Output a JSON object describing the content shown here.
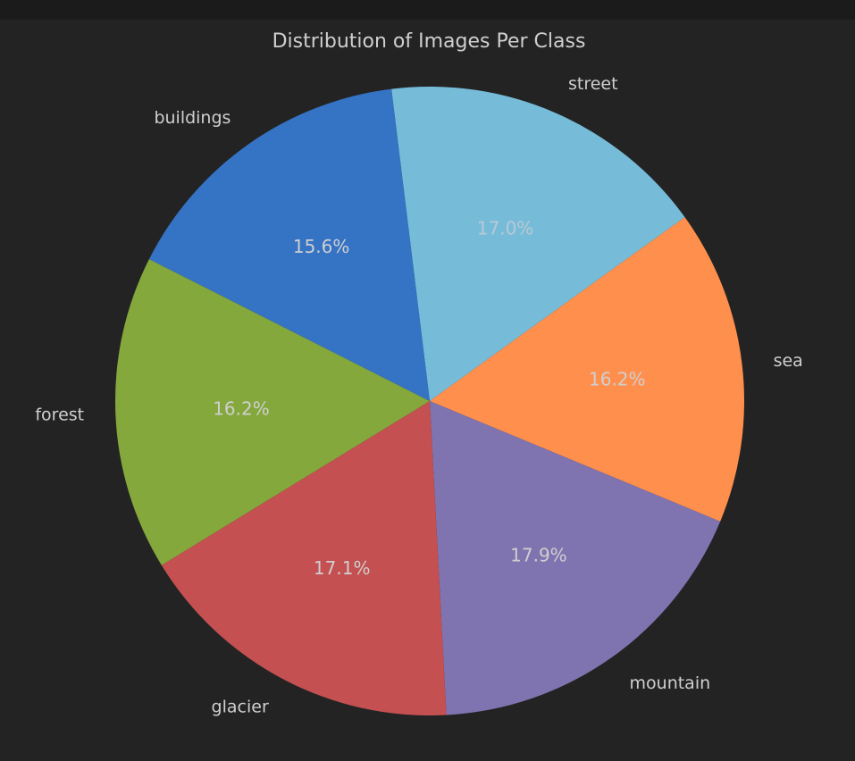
{
  "chart_data": {
    "type": "pie",
    "title": "Distribution of Images Per Class",
    "categories": [
      "street",
      "sea",
      "mountain",
      "glacier",
      "forest",
      "buildings"
    ],
    "values": [
      17.0,
      16.2,
      17.9,
      17.1,
      16.2,
      15.6
    ],
    "value_labels": [
      "17.0%",
      "16.2%",
      "17.9%",
      "17.1%",
      "16.2%",
      "15.6%"
    ],
    "colors": [
      "#76bcd9",
      "#ff8f4d",
      "#8074b0",
      "#c45051",
      "#84a83c",
      "#3573c5"
    ],
    "start_angle_deg": 97,
    "direction": "clockwise",
    "legend": "none",
    "text_color": "#cfcfcf",
    "pct_color_light": "#cfcfcf",
    "pct_color_on_light_slice": "#b9c9d4",
    "background": "#232323"
  }
}
